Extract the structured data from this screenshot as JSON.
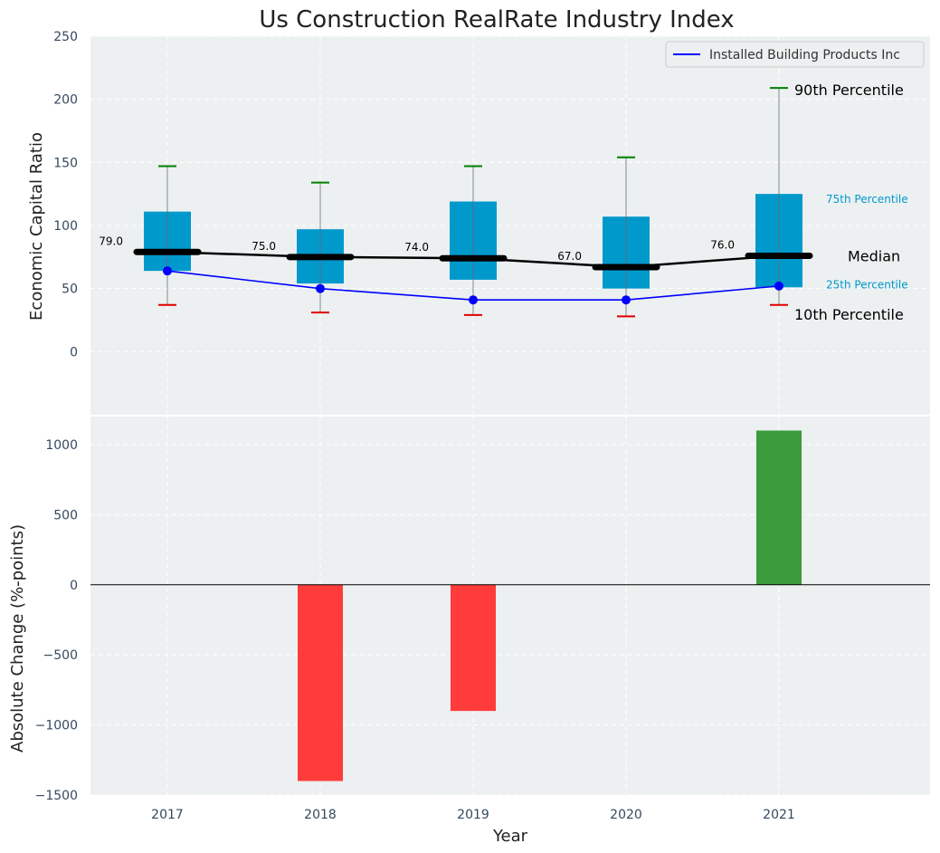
{
  "chart_data": [
    {
      "type": "box",
      "title": "Us Construction RealRate Industry Index",
      "ylabel": "Economic Capital Ratio",
      "xlabel": "",
      "ylim": [
        -50,
        250
      ],
      "yticks": [
        0,
        50,
        100,
        150,
        200,
        250
      ],
      "grid": true,
      "legend": {
        "placement": "top-right",
        "entries": [
          "Installed Building Products Inc"
        ]
      },
      "categories": [
        "2017",
        "2018",
        "2019",
        "2020",
        "2021"
      ],
      "boxes": [
        {
          "p10": 37,
          "p25": 64,
          "median": 79,
          "p75": 111,
          "p90": 147
        },
        {
          "p10": 31,
          "p25": 54,
          "median": 75,
          "p75": 97,
          "p90": 134
        },
        {
          "p10": 29,
          "p25": 57,
          "median": 74,
          "p75": 119,
          "p90": 147
        },
        {
          "p10": 28,
          "p25": 50,
          "median": 67,
          "p75": 107,
          "p90": 154
        },
        {
          "p10": 37,
          "p25": 51,
          "median": 76,
          "p75": 125,
          "p90": 209
        }
      ],
      "median_labels": [
        "79.0",
        "75.0",
        "74.0",
        "67.0",
        "76.0"
      ],
      "series": [
        {
          "name": "Installed Building Products Inc",
          "values": [
            64,
            50,
            41,
            41,
            52
          ],
          "color": "#0000ff"
        }
      ],
      "annotations": {
        "p90": "90th Percentile",
        "p75": "75th Percentile",
        "median": "Median",
        "p25": "25th Percentile",
        "p10": "10th Percentile"
      },
      "colors": {
        "box": "#0099cc",
        "median": "#000000",
        "p90_cap": "#008000",
        "p10_cap": "#e00000",
        "background": "#ecf0f1"
      }
    },
    {
      "type": "bar",
      "title": "",
      "xlabel": "Year",
      "ylabel": "Absolute Change (%-points)",
      "ylim": [
        -1500,
        1200
      ],
      "yticks": [
        -1500,
        -1000,
        -500,
        0,
        500,
        1000
      ],
      "grid": true,
      "categories": [
        "2017",
        "2018",
        "2019",
        "2020",
        "2021"
      ],
      "values": [
        0,
        -1400,
        -900,
        0,
        1100
      ],
      "colors": {
        "positive": "#3a9c3a",
        "negative": "#ff3b3b"
      }
    }
  ]
}
